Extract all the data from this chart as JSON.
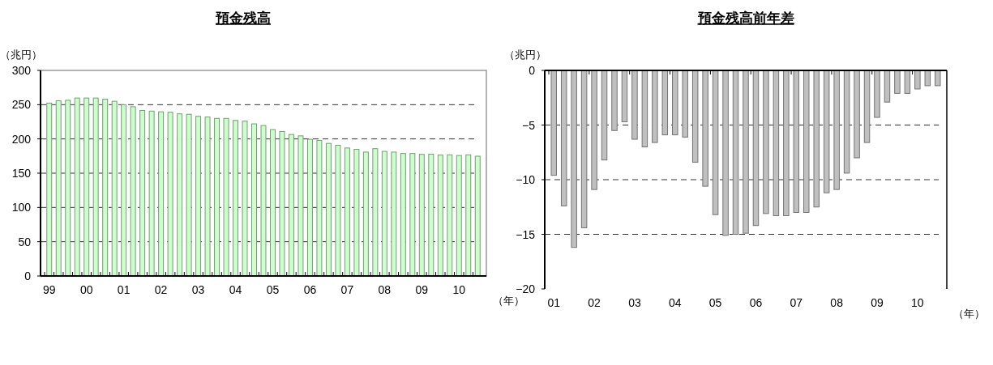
{
  "chart_data": [
    {
      "type": "bar",
      "title": "預金残高",
      "ylabel": "（兆円）",
      "xlabel": "（年）",
      "color": "#ccffcc",
      "grid": "y",
      "ylim": [
        0,
        300
      ],
      "yticks": [
        0,
        50,
        100,
        150,
        200,
        250,
        300
      ],
      "categories": [
        "99",
        null,
        null,
        null,
        "00",
        null,
        null,
        null,
        "01",
        null,
        null,
        null,
        "02",
        null,
        null,
        null,
        "03",
        null,
        null,
        null,
        "04",
        null,
        null,
        null,
        "05",
        null,
        null,
        null,
        "06",
        null,
        null,
        null,
        "07",
        null,
        null,
        null,
        "08",
        null,
        null,
        null,
        "09",
        null,
        null,
        null,
        "10",
        null,
        null
      ],
      "values": [
        252.3,
        255.7,
        256.4,
        259.7,
        259.7,
        259.7,
        258,
        255,
        250,
        247,
        241.6,
        240.6,
        239.6,
        239,
        236.6,
        236,
        233,
        232,
        230,
        230,
        227,
        226,
        222,
        219.6,
        213.6,
        210.9,
        206.5,
        204.5,
        199.5,
        197.9,
        193.5,
        190.8,
        186.8,
        184.8,
        180.8,
        185.8,
        181.8,
        180.8,
        178.8,
        178.8,
        177.5,
        177.8,
        176.5,
        176.8,
        175.8,
        176.8,
        174.8
      ]
    },
    {
      "type": "bar",
      "title": "預金残高前年差",
      "ylabel": "（兆円）",
      "xlabel": "（年）",
      "color": "#c0c0c0",
      "grid": "y",
      "ylim": [
        -20,
        0
      ],
      "yticks": [
        -20,
        -15,
        -10,
        -5,
        0
      ],
      "categories": [
        "01",
        null,
        null,
        null,
        "02",
        null,
        null,
        null,
        "03",
        null,
        null,
        null,
        "04",
        null,
        null,
        null,
        "05",
        null,
        null,
        null,
        "06",
        null,
        null,
        null,
        "07",
        null,
        null,
        null,
        "08",
        null,
        null,
        null,
        "09",
        null,
        null,
        null,
        "10",
        null,
        null
      ],
      "values": [
        -9.6,
        -12.4,
        -16.2,
        -14.4,
        -10.9,
        -8.2,
        -5.5,
        -4.7,
        -6.3,
        -7.0,
        -6.6,
        -5.9,
        -5.9,
        -6.1,
        -8.4,
        -10.6,
        -13.2,
        -15.1,
        -15.0,
        -14.9,
        -14.2,
        -13.1,
        -13.3,
        -13.3,
        -13.0,
        -13.0,
        -12.5,
        -11.2,
        -10.9,
        -9.4,
        -8.0,
        -6.6,
        -4.3,
        -2.9,
        -2.1,
        -2.1,
        -1.7,
        -1.4,
        -1.4
      ]
    }
  ]
}
